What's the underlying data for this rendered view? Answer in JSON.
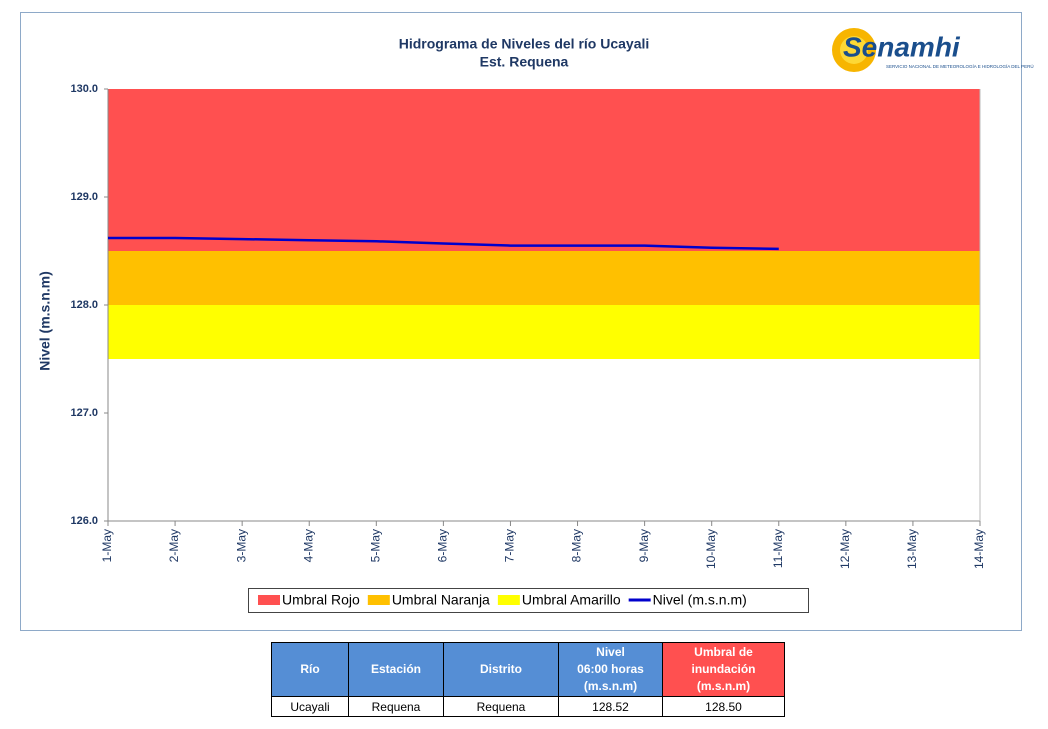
{
  "chart_data": {
    "type": "line",
    "title": "Hidrograma de Niveles del río Ucayali",
    "subtitle": "Est. Requena",
    "y_label": "Nivel (m.s.n.m)",
    "categories": [
      "1-May",
      "2-May",
      "3-May",
      "4-May",
      "5-May",
      "6-May",
      "7-May",
      "8-May",
      "9-May",
      "10-May",
      "11-May",
      "12-May",
      "13-May",
      "14-May"
    ],
    "thresholds": [
      {
        "name": "Umbral Rojo",
        "color": "#ff5050",
        "from": 128.5,
        "to": 130
      },
      {
        "name": "Umbral Naranja",
        "color": "#ffc000",
        "from": 128.0,
        "to": 128.5
      },
      {
        "name": "Umbral Amarillo",
        "color": "#ffff00",
        "from": 127.5,
        "to": 128.0
      }
    ],
    "series": [
      {
        "name": "Nivel (m.s.n.m)",
        "color": "#0000cc",
        "values": [
          128.62,
          128.62,
          128.61,
          128.6,
          128.59,
          128.57,
          128.55,
          128.55,
          128.55,
          128.53,
          128.52,
          null,
          null,
          null
        ]
      }
    ],
    "ylim": [
      126,
      130
    ],
    "yticks": [
      {
        "value": 126,
        "label": "126.0"
      },
      {
        "value": 127,
        "label": "127.0"
      },
      {
        "value": 128,
        "label": "128.0"
      },
      {
        "value": 129,
        "label": "129.0"
      },
      {
        "value": 130,
        "label": "130.0"
      }
    ],
    "legend": "bottom"
  },
  "logo": {
    "name": "Senamhi",
    "tagline": "SERVICIO NACIONAL DE METEOROLOGÍA E HIDROLOGÍA DEL PERÚ"
  },
  "table": {
    "header": [
      "Río",
      "Estación",
      "Distrito",
      "Nivel\n06:00 horas\n(m.s.n.m)",
      "Umbral de\ninundación\n(m.s.n.m)"
    ],
    "rows": [
      [
        "Ucayali",
        "Requena",
        "Requena",
        "128.52",
        "128.50"
      ]
    ]
  }
}
